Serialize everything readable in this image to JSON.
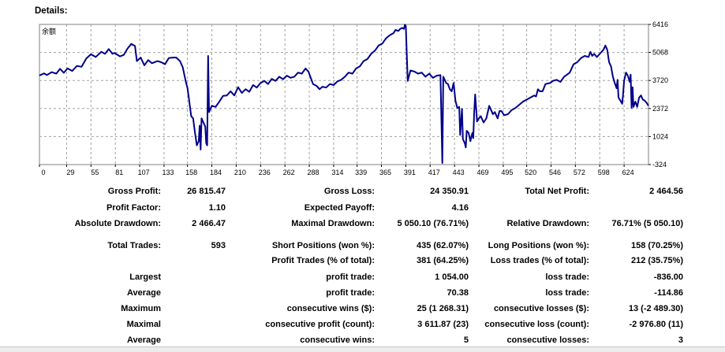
{
  "details_label": "Details:",
  "chart_data": {
    "type": "line",
    "chart_label": "余额",
    "series": [
      {
        "name": "余额",
        "color": "#00008b",
        "points": [
          [
            0,
            3960
          ],
          [
            5,
            4060
          ],
          [
            8,
            3980
          ],
          [
            13,
            4120
          ],
          [
            18,
            4050
          ],
          [
            22,
            4280
          ],
          [
            26,
            4090
          ],
          [
            30,
            4300
          ],
          [
            35,
            4180
          ],
          [
            40,
            4420
          ],
          [
            45,
            4380
          ],
          [
            50,
            4780
          ],
          [
            55,
            4980
          ],
          [
            60,
            4850
          ],
          [
            66,
            5100
          ],
          [
            70,
            5000
          ],
          [
            74,
            5230
          ],
          [
            78,
            5000
          ],
          [
            80,
            5050
          ],
          [
            86,
            4880
          ],
          [
            90,
            4950
          ],
          [
            94,
            5250
          ],
          [
            98,
            5480
          ],
          [
            102,
            5380
          ],
          [
            104,
            4650
          ],
          [
            108,
            4820
          ],
          [
            112,
            4450
          ],
          [
            116,
            4700
          ],
          [
            120,
            4550
          ],
          [
            126,
            4650
          ],
          [
            130,
            4600
          ],
          [
            134,
            4500
          ],
          [
            138,
            4800
          ],
          [
            142,
            4820
          ],
          [
            146,
            4820
          ],
          [
            150,
            4650
          ],
          [
            153,
            4350
          ],
          [
            156,
            3700
          ],
          [
            158,
            3350
          ],
          [
            162,
            2000
          ],
          [
            164,
            1900
          ],
          [
            166,
            1200
          ],
          [
            168,
            600
          ],
          [
            170,
            800
          ],
          [
            171,
            1550
          ],
          [
            172,
            400
          ],
          [
            173,
            1900
          ],
          [
            175,
            1700
          ],
          [
            177,
            1500
          ],
          [
            178,
            700
          ],
          [
            179,
            600
          ],
          [
            180,
            4900
          ],
          [
            181,
            2200
          ],
          [
            184,
            2500
          ],
          [
            188,
            2450
          ],
          [
            192,
            2700
          ],
          [
            196,
            2980
          ],
          [
            200,
            3000
          ],
          [
            204,
            3200
          ],
          [
            208,
            3000
          ],
          [
            212,
            3400
          ],
          [
            216,
            3120
          ],
          [
            220,
            3300
          ],
          [
            224,
            3180
          ],
          [
            228,
            3500
          ],
          [
            232,
            3380
          ],
          [
            236,
            3600
          ],
          [
            240,
            3700
          ],
          [
            244,
            3550
          ],
          [
            248,
            3800
          ],
          [
            252,
            3700
          ],
          [
            256,
            3900
          ],
          [
            260,
            3780
          ],
          [
            264,
            3950
          ],
          [
            268,
            3850
          ],
          [
            272,
            3900
          ],
          [
            276,
            4100
          ],
          [
            280,
            4050
          ],
          [
            284,
            4300
          ],
          [
            287,
            4150
          ],
          [
            290,
            3800
          ],
          [
            292,
            3550
          ],
          [
            296,
            3450
          ],
          [
            299,
            3300
          ],
          [
            302,
            3420
          ],
          [
            306,
            3380
          ],
          [
            310,
            3550
          ],
          [
            314,
            3500
          ],
          [
            318,
            3680
          ],
          [
            322,
            3750
          ],
          [
            326,
            3900
          ],
          [
            330,
            4100
          ],
          [
            334,
            4050
          ],
          [
            338,
            4300
          ],
          [
            342,
            4400
          ],
          [
            346,
            4650
          ],
          [
            350,
            4750
          ],
          [
            354,
            5000
          ],
          [
            358,
            5150
          ],
          [
            362,
            5400
          ],
          [
            366,
            5500
          ],
          [
            370,
            5750
          ],
          [
            374,
            5900
          ],
          [
            378,
            6000
          ],
          [
            380,
            6150
          ],
          [
            383,
            6100
          ],
          [
            385,
            6200
          ],
          [
            387,
            6250
          ],
          [
            389,
            6200
          ],
          [
            390,
            6400
          ],
          [
            391,
            6350
          ],
          [
            393,
            3700
          ],
          [
            396,
            4200
          ],
          [
            400,
            4150
          ],
          [
            404,
            4050
          ],
          [
            408,
            4100
          ],
          [
            412,
            3900
          ],
          [
            416,
            4050
          ],
          [
            420,
            3850
          ],
          [
            424,
            3950
          ],
          [
            428,
            3980
          ],
          [
            430,
            -250
          ],
          [
            431,
            3900
          ],
          [
            434,
            3600
          ],
          [
            436,
            3550
          ],
          [
            438,
            3300
          ],
          [
            440,
            3200
          ],
          [
            442,
            3600
          ],
          [
            444,
            2750
          ],
          [
            446,
            2400
          ],
          [
            448,
            2450
          ],
          [
            449,
            1100
          ],
          [
            451,
            2350
          ],
          [
            452,
            900
          ],
          [
            454,
            700
          ],
          [
            455,
            500
          ],
          [
            456,
            1300
          ],
          [
            458,
            1200
          ],
          [
            460,
            800
          ],
          [
            462,
            1200
          ],
          [
            463,
            950
          ],
          [
            464,
            2200
          ],
          [
            465,
            3050
          ],
          [
            467,
            1750
          ],
          [
            469,
            1900
          ],
          [
            471,
            2000
          ],
          [
            474,
            1700
          ],
          [
            477,
            1900
          ],
          [
            480,
            2500
          ],
          [
            482,
            2300
          ],
          [
            484,
            2100
          ],
          [
            486,
            2200
          ],
          [
            489,
            1900
          ],
          [
            491,
            2250
          ],
          [
            493,
            2250
          ],
          [
            496,
            2050
          ],
          [
            500,
            2100
          ],
          [
            504,
            2300
          ],
          [
            508,
            2400
          ],
          [
            512,
            2550
          ],
          [
            516,
            2700
          ],
          [
            520,
            2800
          ],
          [
            524,
            2900
          ],
          [
            528,
            3000
          ],
          [
            530,
            2950
          ],
          [
            532,
            3300
          ],
          [
            534,
            3200
          ],
          [
            537,
            3200
          ],
          [
            540,
            3550
          ],
          [
            545,
            3600
          ],
          [
            548,
            3700
          ],
          [
            552,
            3750
          ],
          [
            556,
            3650
          ],
          [
            560,
            3900
          ],
          [
            563,
            4000
          ],
          [
            566,
            4100
          ],
          [
            570,
            4500
          ],
          [
            574,
            4600
          ],
          [
            578,
            4800
          ],
          [
            582,
            4900
          ],
          [
            586,
            4850
          ],
          [
            588,
            5100
          ],
          [
            590,
            4900
          ],
          [
            592,
            5000
          ],
          [
            595,
            4850
          ],
          [
            598,
            5000
          ],
          [
            602,
            5200
          ],
          [
            604,
            5400
          ],
          [
            606,
            5200
          ],
          [
            608,
            4600
          ],
          [
            610,
            4400
          ],
          [
            612,
            3900
          ],
          [
            614,
            3600
          ],
          [
            616,
            3350
          ],
          [
            617,
            3750
          ],
          [
            618,
            2900
          ],
          [
            620,
            2750
          ],
          [
            622,
            2600
          ],
          [
            623,
            3100
          ],
          [
            624,
            3700
          ],
          [
            626,
            4100
          ],
          [
            628,
            3950
          ],
          [
            630,
            3650
          ],
          [
            631,
            4000
          ],
          [
            632,
            2400
          ],
          [
            633,
            3400
          ],
          [
            634,
            2450
          ],
          [
            636,
            2700
          ],
          [
            638,
            2450
          ],
          [
            640,
            2900
          ],
          [
            642,
            3000
          ],
          [
            644,
            2800
          ],
          [
            646,
            2750
          ],
          [
            648,
            2650
          ],
          [
            650,
            2500
          ]
        ]
      }
    ],
    "x_ticks": [
      "0",
      "29",
      "55",
      "81",
      "107",
      "133",
      "158",
      "184",
      "210",
      "236",
      "262",
      "288",
      "314",
      "339",
      "365",
      "391",
      "417",
      "443",
      "469",
      "495",
      "520",
      "546",
      "572",
      "598",
      "624"
    ],
    "y_ticks": [
      "6416",
      "5068",
      "3720",
      "2372",
      "1024",
      "-324"
    ],
    "xlim": [
      0,
      650
    ],
    "ylim": [
      -324,
      6416
    ],
    "grid": true
  },
  "stats": {
    "gross_profit": {
      "label": "Gross Profit:",
      "value": "26 815.47"
    },
    "gross_loss": {
      "label": "Gross Loss:",
      "value": "24 350.91"
    },
    "total_net_profit": {
      "label": "Total Net Profit:",
      "value": "2 464.56"
    },
    "profit_factor": {
      "label": "Profit Factor:",
      "value": "1.10"
    },
    "expected_payoff": {
      "label": "Expected Payoff:",
      "value": "4.16"
    },
    "absolute_drawdown": {
      "label": "Absolute Drawdown:",
      "value": "2 466.47"
    },
    "maximal_drawdown": {
      "label": "Maximal Drawdown:",
      "value": "5 050.10 (76.71%)"
    },
    "relative_drawdown": {
      "label": "Relative Drawdown:",
      "value": "76.71% (5 050.10)"
    },
    "total_trades": {
      "label": "Total Trades:",
      "value": "593"
    },
    "short_positions": {
      "label": "Short Positions (won %):",
      "value": "435 (62.07%)"
    },
    "long_positions": {
      "label": "Long Positions (won %):",
      "value": "158 (70.25%)"
    },
    "profit_trades": {
      "label": "Profit Trades (% of total):",
      "value": "381 (64.25%)"
    },
    "loss_trades": {
      "label": "Loss trades (% of total):",
      "value": "212 (35.75%)"
    },
    "largest": {
      "label": "Largest",
      "profit_label": "profit trade:",
      "profit_value": "1 054.00",
      "loss_label": "loss trade:",
      "loss_value": "-836.00"
    },
    "average": {
      "label": "Average",
      "profit_label": "profit trade:",
      "profit_value": "70.38",
      "loss_label": "loss trade:",
      "loss_value": "-114.86"
    },
    "maximum": {
      "label": "Maximum",
      "profit_label": "consecutive wins ($):",
      "profit_value": "25 (1 268.31)",
      "loss_label": "consecutive losses ($):",
      "loss_value": "13 (-2 489.30)"
    },
    "maximal": {
      "label": "Maximal",
      "profit_label": "consecutive profit (count):",
      "profit_value": "3 611.87 (23)",
      "loss_label": "consecutive loss (count):",
      "loss_value": "-2 976.80 (11)"
    },
    "average_consec": {
      "label": "Average",
      "profit_label": "consecutive wins:",
      "profit_value": "5",
      "loss_label": "consecutive losses:",
      "loss_value": "3"
    }
  }
}
